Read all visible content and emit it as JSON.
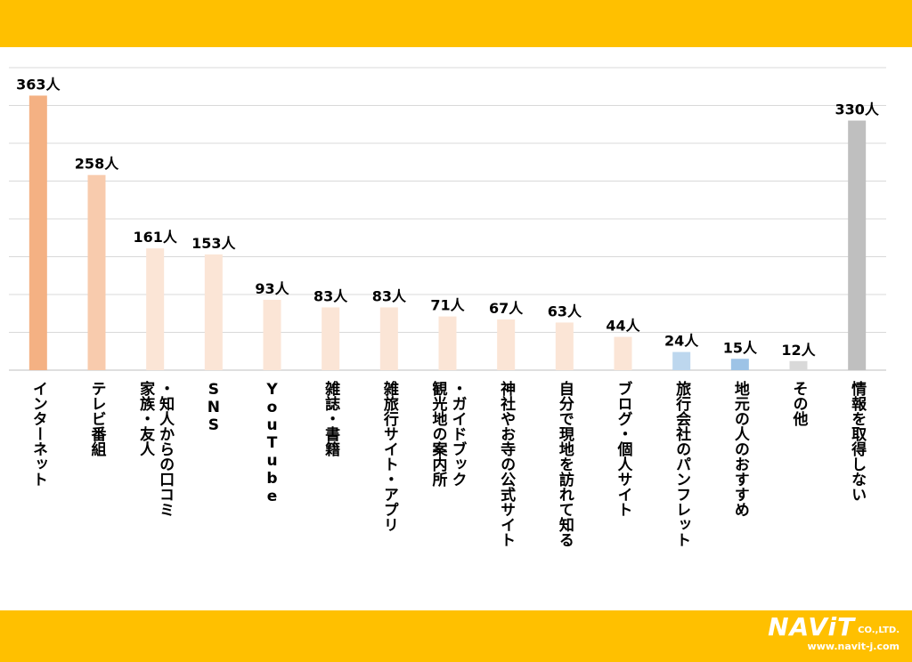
{
  "colors": {
    "band": "#ffc000",
    "grid": "#d9d9d9",
    "axis": "#bfbfbf",
    "text": "#000000"
  },
  "logo": {
    "name": "NAViT",
    "suffix": "CO.,LTD.",
    "url": "www.navit-j.com"
  },
  "chart_data": {
    "type": "bar",
    "title": "",
    "xlabel": "",
    "ylabel": "",
    "ylim": [
      0,
      400
    ],
    "grid": true,
    "legend": "none",
    "value_suffix": "人",
    "categories": [
      "インターネット",
      "テレビ番組",
      "家族・友人・知人からの口コミ",
      "SNS",
      "YouTube",
      "雑誌・書籍",
      "雑旅行サイト・アプリ",
      "観光地の案内所・ガイドブック",
      "神社やお寺の公式サイト",
      "自分で現地を訪れて知る",
      "ブログ・個人サイト",
      "旅行会社のパンフレット",
      "地元の人のおすすめ",
      "その他",
      "情報を取得しない"
    ],
    "label_lines": [
      [
        "インターネット"
      ],
      [
        "テレビ番組"
      ],
      [
        "家族・友人",
        "・知人からの口コミ"
      ],
      [
        "SNS"
      ],
      [
        "YouTube"
      ],
      [
        "雑誌・書籍"
      ],
      [
        "雑旅行サイト・アプリ"
      ],
      [
        "観光地の案内所",
        "・ガイドブック"
      ],
      [
        "神社やお寺の公式サイト"
      ],
      [
        "自分で現地を訪れて知る"
      ],
      [
        "ブログ・個人サイト"
      ],
      [
        "旅行会社のパンフレット"
      ],
      [
        "地元の人のおすすめ"
      ],
      [
        "その他"
      ],
      [
        "情報を取得しない"
      ]
    ],
    "values": [
      363,
      258,
      161,
      153,
      93,
      83,
      83,
      71,
      67,
      63,
      44,
      24,
      15,
      12,
      330
    ],
    "bar_colors": [
      "#f4b183",
      "#f8cbad",
      "#fbe5d6",
      "#fbe5d6",
      "#fbe5d6",
      "#fbe5d6",
      "#fbe5d6",
      "#fbe5d6",
      "#fbe5d6",
      "#fbe5d6",
      "#fbe5d6",
      "#bdd7ee",
      "#9dc3e6",
      "#d9d9d9",
      "#bfbfbf"
    ]
  }
}
